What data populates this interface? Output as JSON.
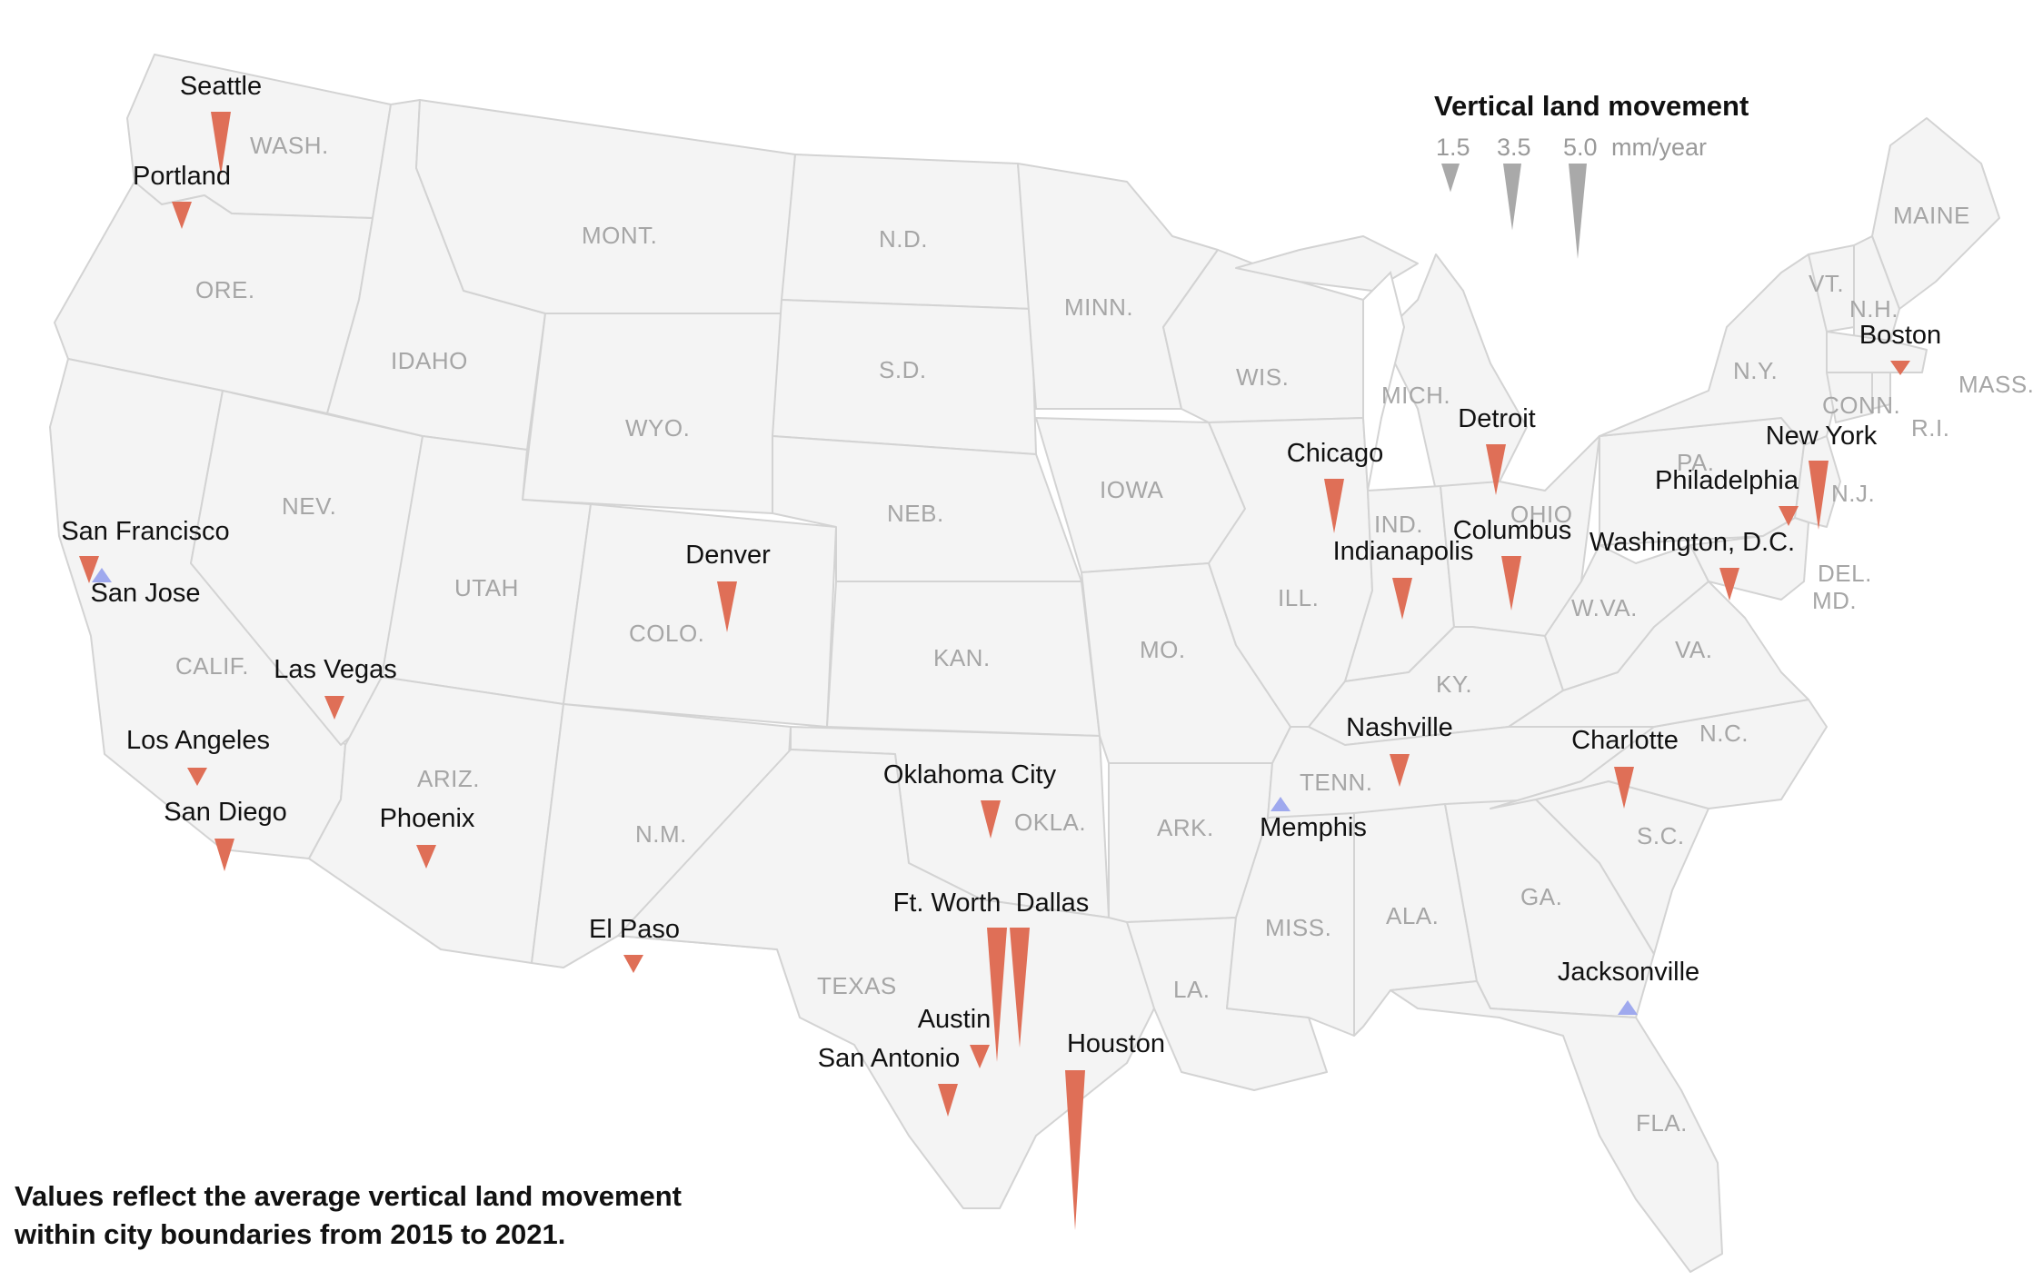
{
  "legend": {
    "title": "Vertical land movement",
    "values": [
      "1.5",
      "3.5",
      "5.0"
    ],
    "unit": "mm/year"
  },
  "note": {
    "line1": "Values reflect the average vertical land movement",
    "line2": "within city boundaries from 2015 to 2021."
  },
  "colors": {
    "subsidence": "#df6f57",
    "uplift": "#9fa9ee",
    "legend": "#a9a9a9",
    "land": "#f4f4f4",
    "border": "#d3d3d3"
  },
  "states": [
    "WASH.",
    "ORE.",
    "CALIF.",
    "NEV.",
    "IDAHO",
    "MONT.",
    "WYO.",
    "UTAH",
    "COLO.",
    "ARIZ.",
    "N.M.",
    "N.D.",
    "S.D.",
    "NEB.",
    "KAN.",
    "OKLA.",
    "TEXAS",
    "MINN.",
    "IOWA",
    "MO.",
    "ARK.",
    "LA.",
    "WIS.",
    "ILL.",
    "MICH.",
    "IND.",
    "OHIO",
    "KY.",
    "TENN.",
    "MISS.",
    "ALA.",
    "GA.",
    "FLA.",
    "S.C.",
    "N.C.",
    "VA.",
    "W.VA.",
    "PA.",
    "N.Y.",
    "MAINE",
    "VT.",
    "N.H.",
    "MASS.",
    "CONN.",
    "R.I.",
    "N.J.",
    "DEL.",
    "MD."
  ],
  "cities": [
    {
      "name": "Seattle",
      "rate": 3.5,
      "direction": "down"
    },
    {
      "name": "Portland",
      "rate": 1.5,
      "direction": "down"
    },
    {
      "name": "San Francisco",
      "rate": 1.5,
      "direction": "down"
    },
    {
      "name": "San Jose",
      "rate": 0.5,
      "direction": "up"
    },
    {
      "name": "Los Angeles",
      "rate": 1.0,
      "direction": "down"
    },
    {
      "name": "San Diego",
      "rate": 1.8,
      "direction": "down"
    },
    {
      "name": "Las Vegas",
      "rate": 1.3,
      "direction": "down"
    },
    {
      "name": "Phoenix",
      "rate": 1.3,
      "direction": "down"
    },
    {
      "name": "Denver",
      "rate": 2.8,
      "direction": "down"
    },
    {
      "name": "El Paso",
      "rate": 1.0,
      "direction": "down"
    },
    {
      "name": "Oklahoma City",
      "rate": 2.1,
      "direction": "down"
    },
    {
      "name": "Ft. Worth",
      "rate": 7.4,
      "direction": "down"
    },
    {
      "name": "Dallas",
      "rate": 6.6,
      "direction": "down"
    },
    {
      "name": "Austin",
      "rate": 1.3,
      "direction": "down"
    },
    {
      "name": "San Antonio",
      "rate": 1.8,
      "direction": "down"
    },
    {
      "name": "Houston",
      "rate": 8.8,
      "direction": "down"
    },
    {
      "name": "Memphis",
      "rate": 0.3,
      "direction": "up"
    },
    {
      "name": "Chicago",
      "rate": 3.0,
      "direction": "down"
    },
    {
      "name": "Indianapolis",
      "rate": 2.3,
      "direction": "down"
    },
    {
      "name": "Detroit",
      "rate": 2.8,
      "direction": "down"
    },
    {
      "name": "Columbus",
      "rate": 3.0,
      "direction": "down"
    },
    {
      "name": "Nashville",
      "rate": 1.8,
      "direction": "down"
    },
    {
      "name": "Charlotte",
      "rate": 2.3,
      "direction": "down"
    },
    {
      "name": "Jacksonville",
      "rate": 0.8,
      "direction": "up"
    },
    {
      "name": "Washington, D.C.",
      "rate": 1.8,
      "direction": "down"
    },
    {
      "name": "Philadelphia",
      "rate": 1.1,
      "direction": "down"
    },
    {
      "name": "New York",
      "rate": 3.8,
      "direction": "down"
    },
    {
      "name": "Boston",
      "rate": 0.8,
      "direction": "down"
    }
  ]
}
